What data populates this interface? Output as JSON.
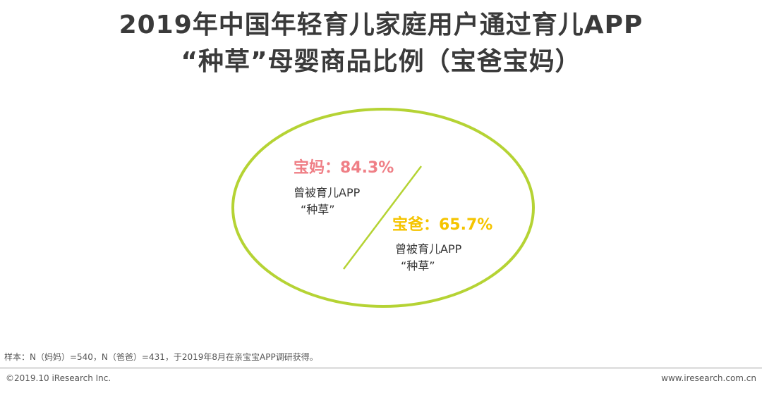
{
  "title": {
    "line1": "2019年中国年轻育儿家庭用户通过育儿APP",
    "line2": "“种草”母婴商品比例（宝爸宝妈）"
  },
  "colors": {
    "ellipse_stroke": "#b5d334",
    "divider_line": "#b5d334",
    "mom": "#ef7f86",
    "dad": "#f5c400",
    "text": "#333333"
  },
  "chart_data": {
    "type": "other",
    "title": "2019年中国年轻育儿家庭用户通过育儿APP“种草”母婴商品比例（宝爸宝妈）",
    "series": [
      {
        "name": "宝妈",
        "value": 84.3,
        "unit": "%",
        "display": "宝妈：84.3%",
        "desc_line1": "曾被育儿APP",
        "desc_line2": "“种草”",
        "color": "#ef7f86"
      },
      {
        "name": "宝爸",
        "value": 65.7,
        "unit": "%",
        "display": "宝爸：65.7%",
        "desc_line1": "曾被育儿APP",
        "desc_line2": "“种草”",
        "color": "#f5c400"
      }
    ]
  },
  "footnote": "样本：N（妈妈）=540，N（爸爸）=431，于2019年8月在亲宝宝APP调研获得。",
  "footer": {
    "copyright": "©2019.10 iResearch Inc.",
    "website": "www.iresearch.com.cn"
  }
}
